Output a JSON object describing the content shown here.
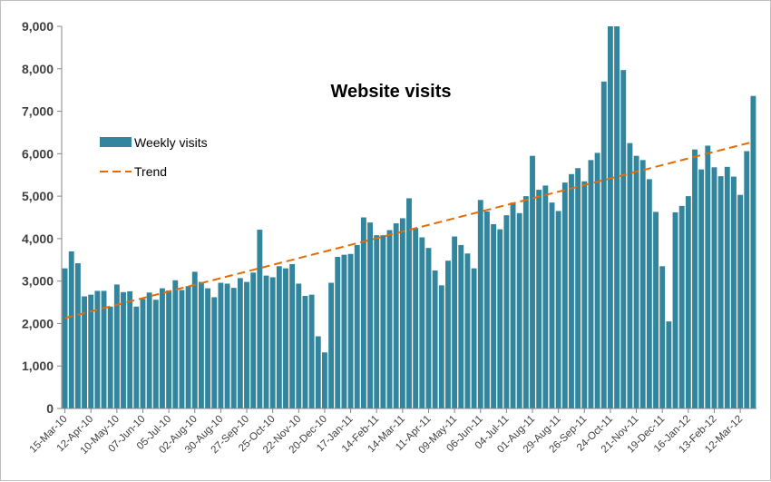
{
  "colors": {
    "bar": "#31859C",
    "trend": "#E36C09",
    "axis": "#868686",
    "gridline": "#A6A6A6"
  },
  "chart_data": {
    "type": "bar",
    "title": "Website visits",
    "xlabel": "",
    "ylabel": "",
    "ylim": [
      0,
      9000
    ],
    "yticks": [
      0,
      1000,
      2000,
      3000,
      4000,
      5000,
      6000,
      7000,
      8000,
      9000
    ],
    "ytick_labels": [
      "0",
      "1,000",
      "2,000",
      "3,000",
      "4,000",
      "5,000",
      "6,000",
      "7,000",
      "8,000",
      "9,000"
    ],
    "legend_position": "left",
    "grid": false,
    "categories": [
      "15-Mar-10",
      "22-Mar-10",
      "29-Mar-10",
      "05-Apr-10",
      "12-Apr-10",
      "19-Apr-10",
      "26-Apr-10",
      "03-May-10",
      "10-May-10",
      "17-May-10",
      "24-May-10",
      "31-May-10",
      "07-Jun-10",
      "14-Jun-10",
      "21-Jun-10",
      "28-Jun-10",
      "05-Jul-10",
      "12-Jul-10",
      "19-Jul-10",
      "26-Jul-10",
      "02-Aug-10",
      "09-Aug-10",
      "16-Aug-10",
      "23-Aug-10",
      "30-Aug-10",
      "06-Sep-10",
      "13-Sep-10",
      "20-Sep-10",
      "27-Sep-10",
      "04-Oct-10",
      "11-Oct-10",
      "18-Oct-10",
      "25-Oct-10",
      "01-Nov-10",
      "08-Nov-10",
      "15-Nov-10",
      "22-Nov-10",
      "29-Nov-10",
      "06-Dec-10",
      "13-Dec-10",
      "20-Dec-10",
      "27-Dec-10",
      "03-Jan-11",
      "10-Jan-11",
      "17-Jan-11",
      "24-Jan-11",
      "31-Jan-11",
      "07-Feb-11",
      "14-Feb-11",
      "21-Feb-11",
      "28-Feb-11",
      "07-Mar-11",
      "14-Mar-11",
      "21-Mar-11",
      "28-Mar-11",
      "04-Apr-11",
      "11-Apr-11",
      "18-Apr-11",
      "25-Apr-11",
      "02-May-11",
      "09-May-11",
      "16-May-11",
      "23-May-11",
      "30-May-11",
      "06-Jun-11",
      "13-Jun-11",
      "20-Jun-11",
      "27-Jun-11",
      "04-Jul-11",
      "11-Jul-11",
      "18-Jul-11",
      "25-Jul-11",
      "01-Aug-11",
      "08-Aug-11",
      "15-Aug-11",
      "22-Aug-11",
      "29-Aug-11",
      "05-Sep-11",
      "12-Sep-11",
      "19-Sep-11",
      "26-Sep-11",
      "03-Oct-11",
      "10-Oct-11",
      "17-Oct-11",
      "24-Oct-11",
      "31-Oct-11",
      "07-Nov-11",
      "14-Nov-11",
      "21-Nov-11",
      "28-Nov-11",
      "05-Dec-11",
      "12-Dec-11",
      "19-Dec-11",
      "26-Dec-11",
      "02-Jan-12",
      "09-Jan-12",
      "16-Jan-12",
      "23-Jan-12",
      "30-Jan-12",
      "06-Feb-12",
      "13-Feb-12",
      "20-Feb-12",
      "27-Feb-12",
      "05-Mar-12",
      "12-Mar-12",
      "19-Mar-12",
      "26-Mar-12"
    ],
    "tick_labels": [
      "15-Mar-10",
      "12-Apr-10",
      "10-May-10",
      "07-Jun-10",
      "05-Jul-10",
      "02-Aug-10",
      "30-Aug-10",
      "27-Sep-10",
      "25-Oct-10",
      "22-Nov-10",
      "20-Dec-10",
      "17-Jan-11",
      "14-Feb-11",
      "14-Mar-11",
      "11-Apr-11",
      "09-May-11",
      "06-Jun-11",
      "04-Jul-11",
      "01-Aug-11",
      "29-Aug-11",
      "26-Sep-11",
      "24-Oct-11",
      "21-Nov-11",
      "19-Dec-11",
      "16-Jan-12",
      "13-Feb-12",
      "12-Mar-12"
    ],
    "series": [
      {
        "name": "Weekly visits",
        "type": "bar",
        "values": [
          3300,
          3700,
          3420,
          2640,
          2680,
          2770,
          2770,
          2400,
          2920,
          2740,
          2760,
          2400,
          2580,
          2730,
          2560,
          2830,
          2780,
          3020,
          2790,
          2880,
          3220,
          2980,
          2830,
          2620,
          2960,
          2940,
          2840,
          3070,
          2980,
          3200,
          4210,
          3130,
          3090,
          3350,
          3300,
          3400,
          2940,
          2650,
          2680,
          1700,
          1320,
          2960,
          3570,
          3620,
          3640,
          3850,
          4500,
          4380,
          4080,
          4080,
          4200,
          4360,
          4480,
          4950,
          4250,
          4030,
          3780,
          3250,
          2900,
          3480,
          4050,
          3850,
          3650,
          3300,
          4910,
          4640,
          4340,
          4220,
          4550,
          4850,
          4600,
          5000,
          5950,
          5150,
          5250,
          4850,
          4650,
          5320,
          5520,
          5660,
          5350,
          5850,
          6020,
          7700,
          9000,
          9000,
          7970,
          6250,
          5950,
          5850,
          5400,
          4630,
          3350,
          2050,
          4620,
          4770,
          5000,
          6100,
          5630,
          6190,
          5680,
          5470,
          5690,
          5460,
          5030,
          6060,
          7360
        ]
      },
      {
        "name": "Trend",
        "type": "line",
        "style": "dashed",
        "start": 2130,
        "end": 6280
      }
    ]
  }
}
